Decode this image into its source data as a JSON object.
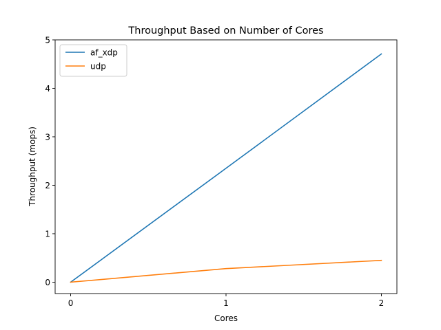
{
  "chart_data": {
    "type": "line",
    "title": "Throughput Based on Number of Cores",
    "xlabel": "Cores",
    "ylabel": "Throughput (mops)",
    "x": [
      0,
      1,
      2
    ],
    "xticks": [
      0,
      1,
      2
    ],
    "yticks": [
      0,
      1,
      2,
      3,
      4,
      5
    ],
    "xlim": [
      -0.1,
      2.1
    ],
    "ylim": [
      -0.235,
      5.0
    ],
    "grid": false,
    "legend_position": "top-left",
    "series": [
      {
        "name": "af_xdp",
        "values": [
          0,
          2.35,
          4.71
        ],
        "color": "#1f77b4"
      },
      {
        "name": "udp",
        "values": [
          0,
          0.28,
          0.45
        ],
        "color": "#ff7f0e"
      }
    ]
  }
}
